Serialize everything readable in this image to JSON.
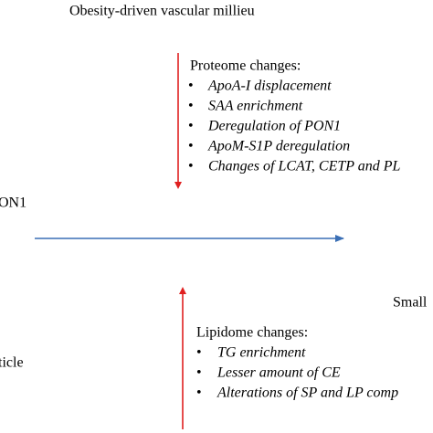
{
  "title": "Obesity-driven vascular millieu",
  "left_labels": [
    "ON1",
    "ticle"
  ],
  "right_label": "Small",
  "proteome": {
    "heading": "Proteome changes:",
    "items": [
      "ApoA-I displacement",
      "SAA enrichment",
      "Deregulation of PON1",
      "ApoM-S1P deregulation",
      "Changes of LCAT, CETP and PL"
    ]
  },
  "lipidome": {
    "heading": "Lipidome changes:",
    "items": [
      "TG enrichment",
      "Lesser amount of CE",
      "Alterations of SP and LP comp"
    ]
  }
}
